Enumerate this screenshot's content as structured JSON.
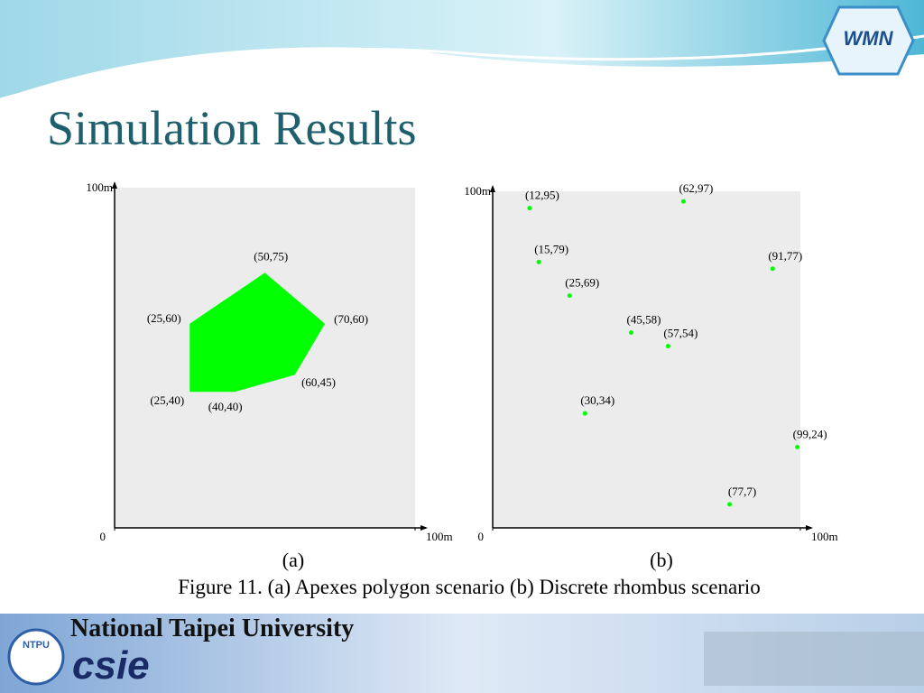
{
  "title": "Simulation Results",
  "caption": "Figure 11. (a) Apexes polygon scenario (b) Discrete rhombus scenario",
  "footer": {
    "university": "National Taipei University",
    "department": "csie",
    "badge": "NTPU"
  },
  "logo": "WMN",
  "chart_data": [
    {
      "type": "polygon",
      "subtitle": "(a)",
      "color": "#00ff00",
      "x": [
        50,
        70,
        60,
        40,
        25,
        25
      ],
      "values": [
        75,
        60,
        45,
        40,
        40,
        60
      ],
      "value_labels": [
        "(50,75)",
        "(70,60)",
        "(60,45)",
        "(40,40)",
        "(25,40)",
        "(25,60)"
      ],
      "xlim": [
        0,
        100
      ],
      "ylim": [
        0,
        100
      ],
      "xticks": [
        0,
        {
          "value": 100,
          "label": "100m"
        }
      ],
      "yticks": [
        {
          "value": 100,
          "label": "100m"
        }
      ]
    },
    {
      "type": "scatter",
      "subtitle": "(b)",
      "color": "#00ff00",
      "x": [
        12,
        62,
        15,
        91,
        25,
        45,
        57,
        30,
        99,
        77
      ],
      "values": [
        95,
        97,
        79,
        77,
        69,
        58,
        54,
        34,
        24,
        7
      ],
      "value_labels": [
        "(12,95)",
        "(62,97)",
        "(15,79)",
        "(91,77)",
        "(25,69)",
        "(45,58)",
        "(57,54)",
        "(30,34)",
        "(99,24)",
        "(77,7)"
      ],
      "xlim": [
        0,
        100
      ],
      "ylim": [
        0,
        100
      ],
      "xticks": [
        0,
        {
          "value": 100,
          "label": "100m"
        }
      ],
      "yticks": [
        {
          "value": 100,
          "label": "100m"
        }
      ]
    }
  ]
}
